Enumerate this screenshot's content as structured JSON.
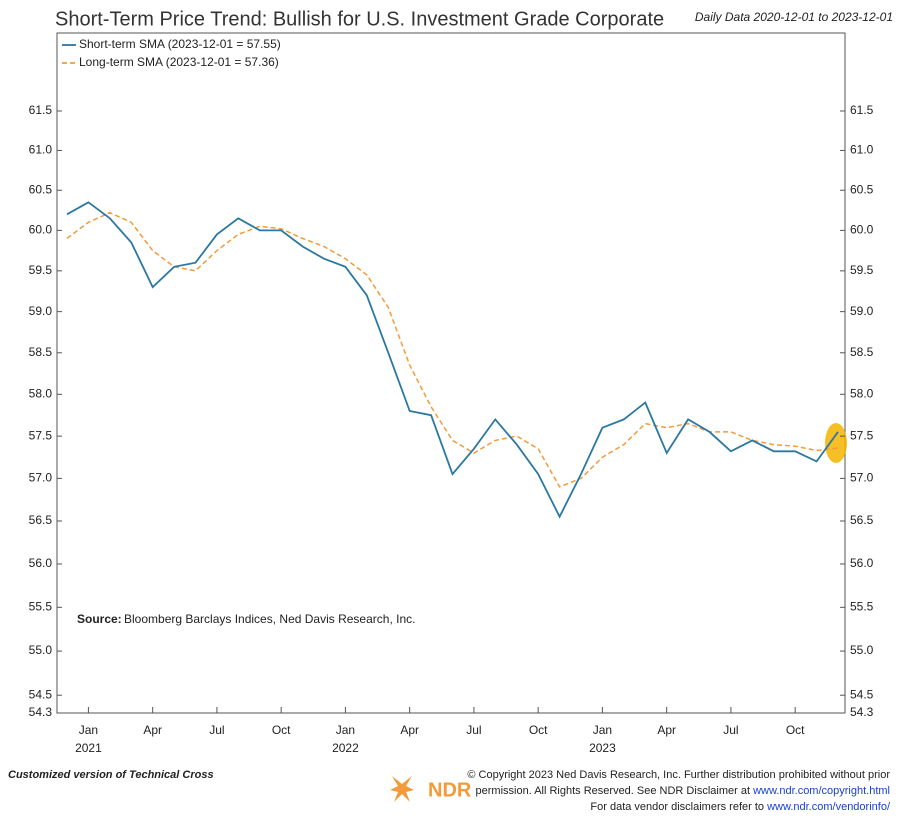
{
  "chart_data": {
    "type": "line",
    "title": "Short-Term Price Trend: Bullish for U.S. Investment Grade Corporate",
    "subtitle": "Daily Data 2020-12-01 to 2023-12-01",
    "log_scale": true,
    "x": [
      "2020-12",
      "2021-01",
      "2021-02",
      "2021-03",
      "2021-04",
      "2021-05",
      "2021-06",
      "2021-07",
      "2021-08",
      "2021-09",
      "2021-10",
      "2021-11",
      "2021-12",
      "2022-01",
      "2022-02",
      "2022-03",
      "2022-04",
      "2022-05",
      "2022-06",
      "2022-07",
      "2022-08",
      "2022-09",
      "2022-10",
      "2022-11",
      "2022-12",
      "2023-01",
      "2023-02",
      "2023-03",
      "2023-04",
      "2023-05",
      "2023-06",
      "2023-07",
      "2023-08",
      "2023-09",
      "2023-10",
      "2023-11",
      "2023-12"
    ],
    "series": [
      {
        "name": "Short-term SMA (2023-12-01 = 57.55)",
        "color": "#2b78a0",
        "dash": false,
        "values": [
          60.2,
          60.35,
          60.15,
          59.85,
          59.3,
          59.55,
          59.6,
          59.95,
          60.15,
          60.0,
          60.0,
          59.8,
          59.65,
          59.55,
          59.2,
          58.5,
          57.8,
          57.75,
          57.05,
          57.35,
          57.7,
          57.4,
          57.05,
          56.55,
          57.05,
          57.6,
          57.7,
          57.9,
          57.3,
          57.7,
          57.55,
          57.32,
          57.45,
          57.32,
          57.32,
          57.2,
          57.55
        ]
      },
      {
        "name": "Long-term SMA (2023-12-01 = 57.36)",
        "color": "#f39a3a",
        "dash": true,
        "values": [
          59.9,
          60.1,
          60.22,
          60.1,
          59.75,
          59.55,
          59.5,
          59.75,
          59.95,
          60.05,
          60.02,
          59.9,
          59.8,
          59.65,
          59.45,
          59.05,
          58.35,
          57.85,
          57.45,
          57.3,
          57.45,
          57.5,
          57.35,
          56.9,
          57.0,
          57.25,
          57.4,
          57.65,
          57.6,
          57.65,
          57.55,
          57.55,
          57.45,
          57.4,
          57.38,
          57.33,
          57.36
        ]
      }
    ],
    "ylim": [
      54.3,
      62.5
    ],
    "yticks": [
      54.3,
      54.5,
      {
        "value": 55,
        "label": "55.0"
      },
      55.5,
      {
        "value": 56,
        "label": "56.0"
      },
      56.5,
      {
        "value": 57,
        "label": "57.0"
      },
      57.5,
      {
        "value": 58,
        "label": "58.0"
      },
      58.5,
      {
        "value": 59,
        "label": "59.0"
      },
      59.5,
      {
        "value": 60,
        "label": "60.0"
      },
      60.5,
      {
        "value": 61,
        "label": "61.0"
      },
      61.5
    ],
    "xticks": [
      {
        "value": "2021-01",
        "label": "Jan"
      },
      {
        "value": "2021-04",
        "label": "Apr"
      },
      {
        "value": "2021-07",
        "label": "Jul"
      },
      {
        "value": "2021-10",
        "label": "Oct"
      },
      {
        "value": "2022-01",
        "label": "Jan"
      },
      {
        "value": "2022-04",
        "label": "Apr"
      },
      {
        "value": "2022-07",
        "label": "Jul"
      },
      {
        "value": "2022-10",
        "label": "Oct"
      },
      {
        "value": "2023-01",
        "label": "Jan"
      },
      {
        "value": "2023-04",
        "label": "Apr"
      },
      {
        "value": "2023-07",
        "label": "Jul"
      },
      {
        "value": "2023-10",
        "label": "Oct"
      }
    ],
    "year_labels": [
      {
        "value": "2021-01",
        "label": "2021"
      },
      {
        "value": "2022-01",
        "label": "2022"
      },
      {
        "value": "2023-01",
        "label": "2023"
      }
    ],
    "source_label": "Source:",
    "source_text": "Bloomberg Barclays Indices, Ned Davis Research, Inc."
  },
  "footer": {
    "note": "Customized version of Technical Cross",
    "logo": "NDR",
    "line1": "© Copyright 2023 Ned Davis Research, Inc. Further distribution prohibited without prior",
    "line2": "permission. All Rights Reserved. See NDR Disclaimer at",
    "link1": "www.ndr.com/copyright.html",
    "line3": "For data vendor disclaimers refer to",
    "link2": "www.ndr.com/vendorinfo/"
  }
}
